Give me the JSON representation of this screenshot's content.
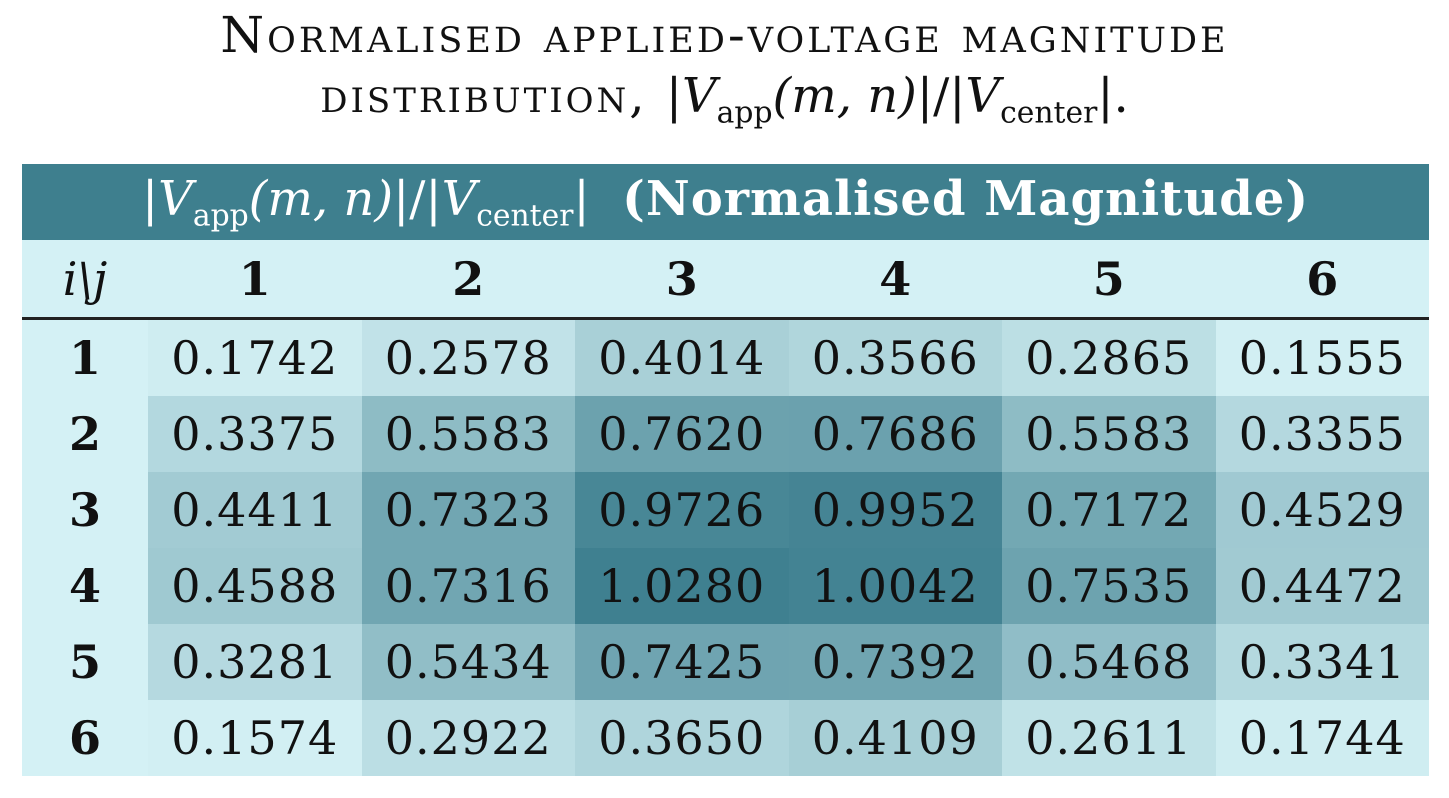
{
  "caption": {
    "line1": "Normalised applied-voltage magnitude",
    "line2_word": "distribution,",
    "formula_v": "V",
    "formula_sub_app": "app",
    "formula_args": "(m, n)",
    "formula_sep": "|/|",
    "formula_v2": "V",
    "formula_sub_center": "center",
    "formula_end": "|."
  },
  "table": {
    "title_bold": "(Normalised Magnitude)",
    "corner": "i\\j",
    "columns": [
      "1",
      "2",
      "3",
      "4",
      "5",
      "6"
    ],
    "rows": [
      {
        "label": "1",
        "cells": [
          "0.1742",
          "0.2578",
          "0.4014",
          "0.3566",
          "0.2865",
          "0.1555"
        ]
      },
      {
        "label": "2",
        "cells": [
          "0.3375",
          "0.5583",
          "0.7620",
          "0.7686",
          "0.5583",
          "0.3355"
        ]
      },
      {
        "label": "3",
        "cells": [
          "0.4411",
          "0.7323",
          "0.9726",
          "0.9952",
          "0.7172",
          "0.4529"
        ]
      },
      {
        "label": "4",
        "cells": [
          "0.4588",
          "0.7316",
          "1.0280",
          "1.0042",
          "0.7535",
          "0.4472"
        ]
      },
      {
        "label": "5",
        "cells": [
          "0.3281",
          "0.5434",
          "0.7425",
          "0.7392",
          "0.5468",
          "0.3341"
        ]
      },
      {
        "label": "6",
        "cells": [
          "0.1574",
          "0.2922",
          "0.3650",
          "0.4109",
          "0.2611",
          "0.1744"
        ]
      }
    ]
  },
  "colors": {
    "header_band": "#3e7f8e",
    "label_band": "#d4f1f5",
    "cell_low": "#d3f0f4",
    "cell_high": "#3f8090"
  }
}
